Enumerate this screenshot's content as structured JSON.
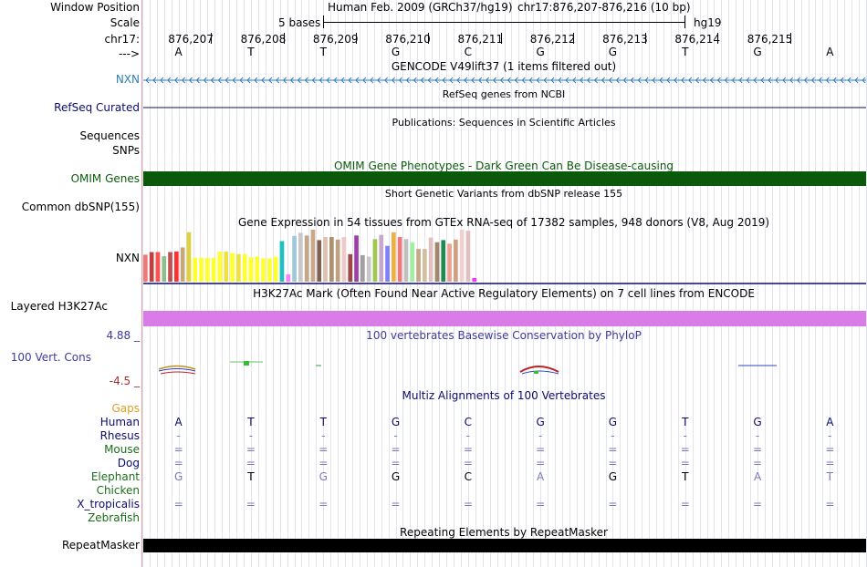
{
  "header": {
    "window_position_label": "Window Position",
    "assembly_text": "Human Feb. 2009 (GRCh37/hg19)",
    "position_text": "chr17:876,207-876,216 (10 bp)",
    "scale_label": "Scale",
    "scale_text": "5 bases",
    "db_label": "hg19",
    "chrom_label": "chr17:",
    "strand_label": "--->"
  },
  "coordinates": [
    "876,207",
    "876,208",
    "876,209",
    "876,210",
    "876,211",
    "876,212",
    "876,213",
    "876,214",
    "876,215"
  ],
  "bases": [
    "A",
    "T",
    "T",
    "G",
    "C",
    "G",
    "G",
    "T",
    "G",
    "A"
  ],
  "tracks": {
    "gencode": {
      "title": "GENCODE V49lift37 (1 items filtered out)",
      "gene_label": "NXN",
      "color": "#2e7fb8"
    },
    "refseq": {
      "title": "RefSeq genes from NCBI",
      "label": "RefSeq Curated",
      "color": "#0b0b6e"
    },
    "publications": {
      "title": "Publications: Sequences in Scientific Articles",
      "label1": "Sequences",
      "label2": "SNPs"
    },
    "omim": {
      "title": "OMIM Gene Phenotypes - Dark Green Can Be Disease-causing",
      "label": "OMIM Genes",
      "color": "#0b5a0b"
    },
    "dbsnp": {
      "title": "Short Genetic Variants from dbSNP release 155",
      "label": "Common dbSNP(155)"
    },
    "gtex": {
      "title": "Gene Expression in 54 tissues from GTEx RNA-seq of 17382 samples, 948 donors (V8, Aug 2019)",
      "label": "NXN"
    },
    "h3k27ac": {
      "title": "H3K27Ac Mark (Often Found Near Active Regulatory Elements) on 7 cell lines from ENCODE",
      "label": "Layered H3K27Ac",
      "color": "#d97ce8"
    },
    "phylop": {
      "title": "100 vertebrates Basewise Conservation by PhyloP",
      "label": "100 Vert. Cons",
      "max_label": "4.88 _",
      "min_label": "-4.5 _",
      "color": "#3b3b9e"
    },
    "multiz": {
      "title": "Multiz Alignments of 100 Vertebrates",
      "gaps_label": "Gaps",
      "species": [
        {
          "name": "Human",
          "color": "#0b0b6e",
          "row": [
            "A",
            "T",
            "T",
            "G",
            "C",
            "G",
            "G",
            "T",
            "G",
            "A"
          ]
        },
        {
          "name": "Rhesus",
          "color": "#0b0b6e",
          "row": [
            "-",
            "-",
            "-",
            "-",
            "-",
            "-",
            "-",
            "-",
            "-",
            "-"
          ]
        },
        {
          "name": "Mouse",
          "color": "#1a6e1a",
          "row": [
            "=",
            "=",
            "=",
            "=",
            "=",
            "=",
            "=",
            "=",
            "=",
            "="
          ]
        },
        {
          "name": "Dog",
          "color": "#0b0b6e",
          "row": [
            "=",
            "=",
            "=",
            "=",
            "=",
            "=",
            "=",
            "=",
            "=",
            "="
          ]
        },
        {
          "name": "Elephant",
          "color": "#1a6e1a",
          "row": [
            "G",
            "T",
            "G",
            "G",
            "C",
            "A",
            "G",
            "T",
            "A",
            "T"
          ]
        },
        {
          "name": "Chicken",
          "color": "#1a6e1a",
          "row": []
        },
        {
          "name": "X_tropicalis",
          "color": "#0b0b6e",
          "row": [
            "=",
            "=",
            "=",
            "=",
            "=",
            "=",
            "=",
            "=",
            "=",
            "="
          ]
        },
        {
          "name": "Zebrafish",
          "color": "#1a6e1a",
          "row": []
        }
      ]
    },
    "repeatmasker": {
      "title": "Repeating Elements by RepeatMasker",
      "label": "RepeatMasker"
    }
  },
  "gtex_chart_data": {
    "type": "bar",
    "ylim": [
      0,
      100
    ],
    "values": [
      52,
      57,
      57,
      49,
      57,
      58,
      66,
      95,
      46,
      46,
      46,
      46,
      58,
      58,
      55,
      53,
      53,
      47,
      48,
      45,
      45,
      48,
      78,
      14,
      88,
      94,
      89,
      100,
      80,
      86,
      86,
      81,
      86,
      53,
      89,
      51,
      48,
      82,
      90,
      69,
      95,
      86,
      82,
      76,
      63,
      63,
      85,
      76,
      80,
      73,
      81,
      100,
      98,
      7
    ],
    "colors": [
      "#f07878",
      "#c04040",
      "#ff5050",
      "#8cc08c",
      "#c05050",
      "#ff3030",
      "#c8a878",
      "#e0d040",
      "#ffff30",
      "#ffff30",
      "#ffff30",
      "#ffff30",
      "#ffff30",
      "#f0e040",
      "#ffff30",
      "#f0e040",
      "#ffff30",
      "#ffff30",
      "#ffff30",
      "#ffff30",
      "#ffff30",
      "#ffff30",
      "#20c0c0",
      "#ff80ff",
      "#a0c8d8",
      "#c8c8c8",
      "#c0a888",
      "#c8a888",
      "#806050",
      "#e0c0b0",
      "#b09070",
      "#c0a080",
      "#f0c8c8",
      "#a04848",
      "#9e3fa8",
      "#a0a0a0",
      "#c8c8c8",
      "#a0c850",
      "#c8a8c8",
      "#8080ff",
      "#f0b040",
      "#f07878",
      "#c0c0c0",
      "#a0f0a0",
      "#c8a888",
      "#d0c0a0",
      "#e0c0c0",
      "#a08868",
      "#208850",
      "#f0a090",
      "#d0a080",
      "#f0d0d0",
      "#e0c0c0",
      "#ff30ff"
    ]
  },
  "phylop_chart_data": {
    "type": "bar",
    "ylim": [
      -4.5,
      4.88
    ],
    "note": "sparse small conservation marks"
  }
}
